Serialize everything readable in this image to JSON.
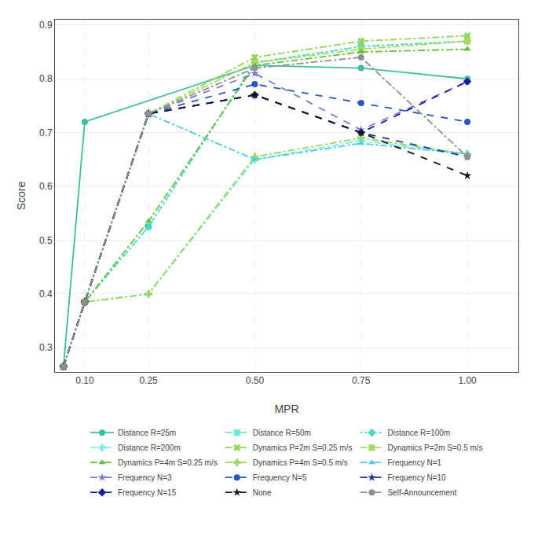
{
  "chart_data": {
    "type": "line",
    "x_label": "MPR",
    "y_label": "Score",
    "xlim": [
      0.03,
      1.12
    ],
    "ylim": [
      0.255,
      0.91
    ],
    "xticks": [
      {
        "value": 0.1,
        "label": "0.10"
      },
      0.25,
      {
        "value": 0.5,
        "label": "0.50"
      },
      0.75,
      {
        "value": 1.0,
        "label": "1.00"
      }
    ],
    "yticks": [
      0.3,
      0.4,
      0.5,
      0.6,
      0.7,
      0.8,
      0.9
    ],
    "grid": true,
    "legend": "bottom",
    "series": [
      {
        "name": "Distance R=25m",
        "color": "#3dbfa0",
        "line_style": "solid",
        "marker": "circle",
        "x": [
          0.05,
          0.1,
          0.5,
          0.75,
          1.0
        ],
        "values": [
          0.265,
          0.72,
          0.825,
          0.82,
          0.8
        ]
      },
      {
        "name": "Distance R=50m",
        "color": "#6ae8d8",
        "line_style": "dash",
        "marker": "square",
        "x": [
          0.05,
          0.1,
          0.25,
          0.5,
          0.75,
          1.0
        ],
        "values": [
          0.265,
          0.385,
          0.525,
          0.83,
          0.86,
          0.87
        ]
      },
      {
        "name": "Distance R=100m",
        "color": "#45d8c8",
        "line_style": "dot",
        "marker": "diamond",
        "x": [
          0.05,
          0.1,
          0.25,
          0.5,
          0.75,
          1.0
        ],
        "values": [
          0.265,
          0.385,
          0.525,
          0.83,
          0.86,
          0.87
        ]
      },
      {
        "name": "Distance R=200m",
        "color": "#78f0e2",
        "line_style": "dashdot",
        "marker": "cross",
        "x": [
          0.05,
          0.1,
          0.25,
          0.5,
          0.75,
          1.0
        ],
        "values": [
          0.265,
          0.385,
          0.4,
          0.65,
          0.685,
          0.66
        ]
      },
      {
        "name": "Dynamics P=2m S=0.25 m/s",
        "color": "#90d855",
        "line_style": "dashdot",
        "marker": "x",
        "x": [
          0.05,
          0.1,
          0.25,
          0.5,
          0.75,
          1.0
        ],
        "values": [
          0.265,
          0.385,
          0.735,
          0.84,
          0.87,
          0.88
        ]
      },
      {
        "name": "Dynamics P=2m S=0.5 m/s",
        "color": "#aad860",
        "line_style": "dashdot",
        "marker": "square",
        "x": [
          0.05,
          0.1,
          0.25,
          0.5,
          0.75,
          1.0
        ],
        "values": [
          0.265,
          0.385,
          0.735,
          0.83,
          0.855,
          0.87
        ]
      },
      {
        "name": "Dynamics P=4m S=0.25 m/s",
        "color": "#68c040",
        "line_style": "dashdot",
        "marker": "triangle-up",
        "x": [
          0.05,
          0.1,
          0.25,
          0.5,
          0.75,
          1.0
        ],
        "values": [
          0.265,
          0.385,
          0.535,
          0.825,
          0.85,
          0.855
        ]
      },
      {
        "name": "Dynamics P=4m S=0.5 m/s",
        "color": "#98d860",
        "line_style": "dashdot",
        "marker": "cross",
        "x": [
          0.05,
          0.1,
          0.25,
          0.5,
          0.75,
          1.0
        ],
        "values": [
          0.265,
          0.385,
          0.4,
          0.655,
          0.69,
          0.66
        ]
      },
      {
        "name": "Frequency N=1",
        "color": "#50cce8",
        "line_style": "dashdot",
        "marker": "triangle-up",
        "x": [
          0.05,
          0.1,
          0.25,
          0.5,
          0.75,
          1.0
        ],
        "values": [
          0.265,
          0.385,
          0.735,
          0.65,
          0.68,
          0.66
        ]
      },
      {
        "name": "Frequency N=3",
        "color": "#7878d8",
        "line_style": "dash",
        "marker": "star",
        "x": [
          0.05,
          0.1,
          0.25,
          0.5,
          0.75,
          1.0
        ],
        "values": [
          0.265,
          0.385,
          0.735,
          0.81,
          0.705,
          0.795
        ]
      },
      {
        "name": "Frequency N=5",
        "color": "#2855c8",
        "line_style": "dash",
        "marker": "circle",
        "x": [
          0.05,
          0.1,
          0.25,
          0.5,
          0.75,
          1.0
        ],
        "values": [
          0.265,
          0.385,
          0.735,
          0.79,
          0.755,
          0.72
        ]
      },
      {
        "name": "Frequency N=10",
        "color": "#1835a8",
        "line_style": "dash",
        "marker": "star",
        "x": [
          0.05,
          0.1,
          0.25,
          0.5,
          0.75,
          1.0
        ],
        "values": [
          0.265,
          0.385,
          0.735,
          0.77,
          0.7,
          0.655
        ]
      },
      {
        "name": "Frequency N=15",
        "color": "#182098",
        "line_style": "dash",
        "marker": "diamond",
        "x": [
          0.05,
          0.1,
          0.25,
          0.5,
          0.75,
          1.0
        ],
        "values": [
          0.265,
          0.385,
          0.735,
          0.77,
          0.7,
          0.795
        ]
      },
      {
        "name": "None",
        "color": "#181818",
        "line_style": "dash",
        "marker": "star",
        "x": [
          0.05,
          0.1,
          0.25,
          0.5,
          0.75,
          1.0
        ],
        "values": [
          0.265,
          0.385,
          0.735,
          0.77,
          0.7,
          0.62
        ]
      },
      {
        "name": "Self-Announcement",
        "color": "#909090",
        "line_style": "dashdot",
        "marker": "circle",
        "x": [
          0.05,
          0.1,
          0.25,
          0.5,
          0.75,
          1.0
        ],
        "values": [
          0.265,
          0.385,
          0.735,
          0.82,
          0.84,
          0.655
        ]
      }
    ]
  }
}
